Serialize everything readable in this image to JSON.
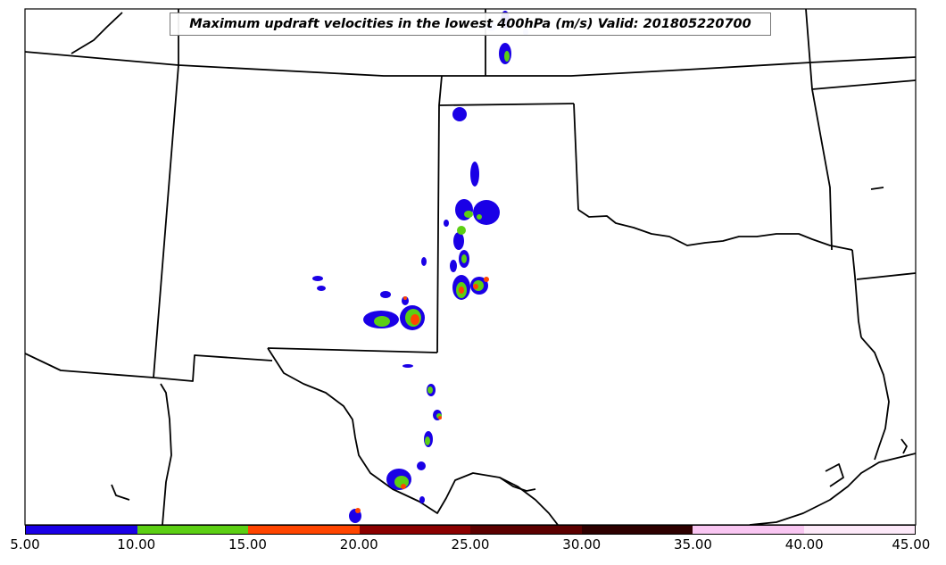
{
  "map": {
    "title": "Maximum updraft velocities in the lowest 400hPa (m/s) Valid: 201805220700"
  },
  "legend": {
    "colors": [
      "#1a00e6",
      "#5ccf14",
      "#ff4500",
      "#8b0000",
      "#5c0000",
      "#2e0000",
      "#f9c6f2",
      "#fde9f9"
    ],
    "tick_labels": [
      "5.00",
      "10.00",
      "15.00",
      "20.00",
      "25.00",
      "30.00",
      "35.00",
      "40.00",
      "45.00"
    ]
  }
}
